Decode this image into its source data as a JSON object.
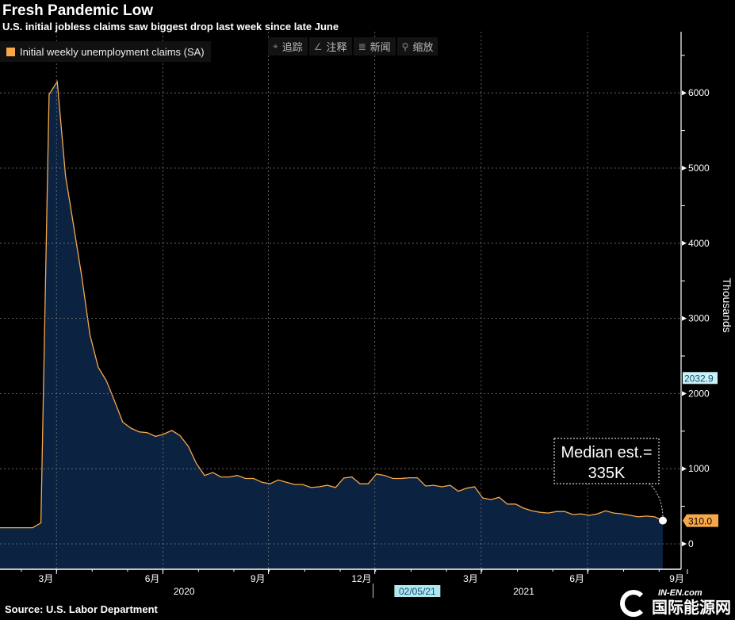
{
  "header": {
    "title": "Fresh Pandemic Low",
    "subtitle": "U.S. initial jobless claims saw biggest drop last week since late June"
  },
  "legend": {
    "label": "Initial weekly unemployment claims (SA)",
    "color": "#f7a84a"
  },
  "toolbar": [
    {
      "icon": "crosshair-icon",
      "glyph": "⌖",
      "label": "追踪"
    },
    {
      "icon": "annotate-icon",
      "glyph": "∠",
      "label": "注释"
    },
    {
      "icon": "news-icon",
      "glyph": "≣",
      "label": "新闻"
    },
    {
      "icon": "zoom-icon",
      "glyph": "⚲",
      "label": "缩放"
    }
  ],
  "source": "Source: U.S. Labor Department",
  "watermark": {
    "en": "IN-EN.com",
    "cn": "国际能源网"
  },
  "chart_data": {
    "type": "area",
    "title": "Fresh Pandemic Low",
    "ylabel": "Thousands",
    "ylim": [
      -350,
      6750
    ],
    "xlim": [
      0,
      84
    ],
    "yticks": [
      0,
      1000,
      2000,
      3000,
      4000,
      5000,
      6000
    ],
    "grid": true,
    "line_color": "#f7a84a",
    "fill_color": "#0b2240",
    "x_unit": "week index",
    "values": [
      215,
      215,
      215,
      215,
      215,
      280,
      5980,
      6150,
      4900,
      4230,
      3550,
      2780,
      2350,
      2170,
      1900,
      1620,
      1540,
      1490,
      1480,
      1430,
      1460,
      1510,
      1440,
      1300,
      1070,
      910,
      950,
      890,
      890,
      910,
      870,
      870,
      820,
      800,
      850,
      820,
      790,
      790,
      750,
      760,
      780,
      750,
      875,
      890,
      800,
      800,
      930,
      910,
      870,
      870,
      880,
      880,
      770,
      780,
      760,
      780,
      700,
      740,
      760,
      610,
      590,
      620,
      530,
      530,
      475,
      440,
      420,
      410,
      430,
      430,
      390,
      400,
      380,
      400,
      440,
      410,
      400,
      380,
      360,
      370,
      360,
      310
    ],
    "xticks": [
      {
        "pos": 6.9,
        "label": "3月"
      },
      {
        "pos": 19.9,
        "label": "6月"
      },
      {
        "pos": 32.8,
        "label": "9月"
      },
      {
        "pos": 45.8,
        "label": "12月"
      },
      {
        "pos": 58.8,
        "label": "3月"
      },
      {
        "pos": 71.8,
        "label": "6月"
      },
      {
        "pos": 84,
        "label": "9月"
      }
    ],
    "years": [
      {
        "pos": 22.5,
        "label": "2020"
      },
      {
        "pos": 64,
        "label": "2021"
      }
    ],
    "year_divider": 45.6,
    "cursor_date": {
      "pos": 51,
      "label": "02/05/21"
    },
    "last_value": {
      "value": 310,
      "label": "310.0"
    },
    "crosshair_value": {
      "value": 2032.9,
      "label": "2032.9"
    },
    "annotation": {
      "line1": "Median est.=",
      "line2": "335K"
    }
  }
}
